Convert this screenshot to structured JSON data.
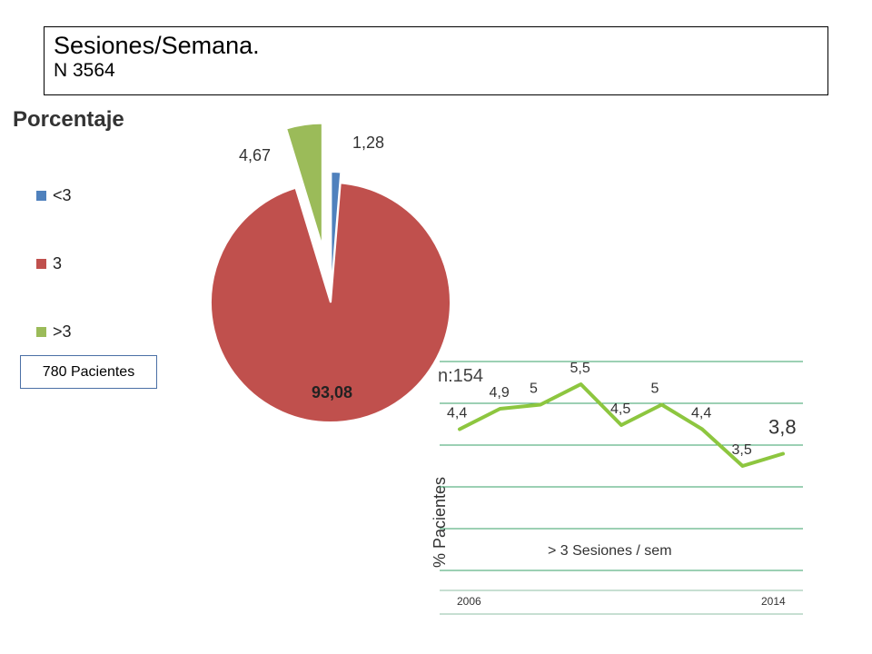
{
  "header": {
    "title": "Sesiones/Semana.",
    "subtitle": "N 3564"
  },
  "colors": {
    "lt3": "#4f81bd",
    "eq3": "#c0504d",
    "gt3": "#9bbb59",
    "line": "#8dc63f",
    "grid": "#38a169"
  },
  "pie_note": "780 Pacientes",
  "chart_data": [
    {
      "type": "pie",
      "title": "Porcentaje",
      "slices": [
        {
          "label": "<3",
          "value": 1.28,
          "value_label": "1,28",
          "color": "#4f81bd"
        },
        {
          "label": "3",
          "value": 93.08,
          "value_label": "93,08",
          "color": "#c0504d"
        },
        {
          "label": ">3",
          "value": 4.67,
          "value_label": "4,67",
          "color": "#9bbb59"
        }
      ],
      "legend": "left"
    },
    {
      "type": "line",
      "n_label": "n:154",
      "ylabel": "% Pacientes",
      "xlabel": "> 3 Sesiones / sem",
      "x_start": "2006",
      "x_end": "2014",
      "series": [
        {
          "values": [
            4.4,
            4.9,
            5,
            5.5,
            4.5,
            5,
            4.4,
            3.5,
            3.8
          ],
          "value_labels": [
            "4,4",
            "4,9",
            "5",
            "5,5",
            "4,5",
            "5",
            "4,4",
            "3,5",
            "3,8"
          ]
        }
      ],
      "grid": true
    }
  ]
}
